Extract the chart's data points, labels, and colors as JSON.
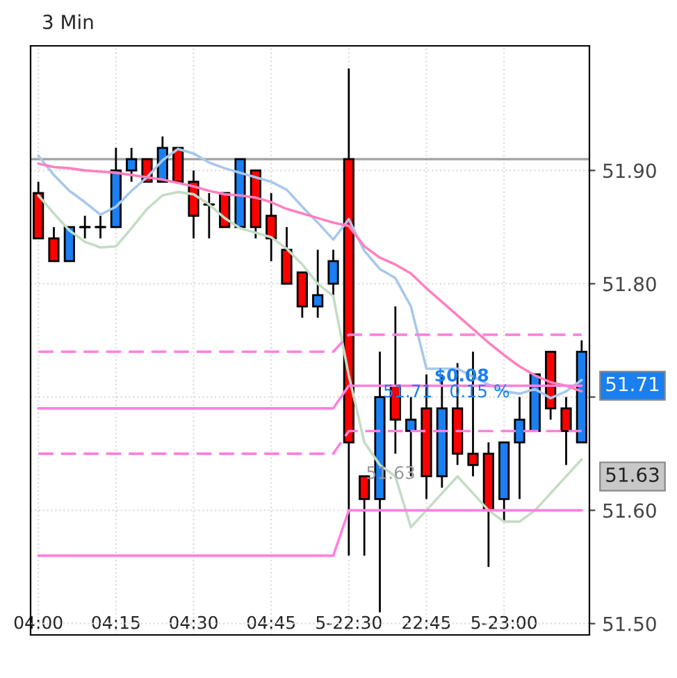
{
  "chart_data": {
    "type": "candlestick",
    "title": "3 Min",
    "categories": [
      "04:00",
      null,
      null,
      null,
      null,
      "04:15",
      null,
      null,
      null,
      null,
      "04:30",
      null,
      null,
      null,
      null,
      "04:45",
      null,
      null,
      null,
      null,
      "5-22:30",
      null,
      null,
      null,
      null,
      "22:45",
      null,
      null,
      null,
      null,
      "5-23:00",
      null,
      null,
      null,
      null,
      null
    ],
    "ohlc": [
      [
        51.88,
        51.89,
        51.84,
        51.84
      ],
      [
        51.84,
        51.85,
        51.82,
        51.82
      ],
      [
        51.82,
        51.85,
        51.82,
        51.85
      ],
      [
        51.85,
        51.86,
        51.84,
        51.85
      ],
      [
        51.85,
        51.86,
        51.84,
        51.85
      ],
      [
        51.85,
        51.92,
        51.85,
        51.9
      ],
      [
        51.9,
        51.92,
        51.89,
        51.91
      ],
      [
        51.91,
        51.91,
        51.89,
        51.89
      ],
      [
        51.89,
        51.93,
        51.89,
        51.92
      ],
      [
        51.92,
        51.92,
        51.89,
        51.89
      ],
      [
        51.89,
        51.9,
        51.84,
        51.86
      ],
      [
        51.87,
        51.88,
        51.84,
        51.87
      ],
      [
        51.88,
        51.88,
        51.85,
        51.85
      ],
      [
        51.85,
        51.91,
        51.85,
        51.91
      ],
      [
        51.9,
        51.9,
        51.84,
        51.85
      ],
      [
        51.86,
        51.88,
        51.82,
        51.84
      ],
      [
        51.83,
        51.85,
        51.8,
        51.8
      ],
      [
        51.81,
        51.81,
        51.77,
        51.78
      ],
      [
        51.78,
        51.83,
        51.77,
        51.79
      ],
      [
        51.8,
        51.83,
        51.79,
        51.82
      ],
      [
        51.91,
        51.99,
        51.56,
        51.66
      ],
      [
        51.63,
        51.63,
        51.56,
        51.61
      ],
      [
        51.61,
        51.74,
        51.51,
        51.7
      ],
      [
        51.71,
        51.78,
        51.65,
        51.68
      ],
      [
        51.67,
        51.7,
        51.63,
        51.68
      ],
      [
        51.69,
        51.72,
        51.61,
        51.63
      ],
      [
        51.63,
        51.72,
        51.62,
        51.69
      ],
      [
        51.69,
        51.73,
        51.64,
        51.65
      ],
      [
        51.65,
        51.74,
        51.63,
        51.64
      ],
      [
        51.65,
        51.66,
        51.55,
        51.6
      ],
      [
        51.61,
        51.66,
        51.59,
        51.66
      ],
      [
        51.66,
        51.7,
        51.61,
        51.68
      ],
      [
        51.67,
        51.72,
        51.67,
        51.72
      ],
      [
        51.74,
        51.74,
        51.68,
        51.69
      ],
      [
        51.69,
        51.7,
        51.64,
        51.67
      ],
      [
        51.66,
        51.75,
        51.66,
        51.74
      ]
    ],
    "series": [
      {
        "type": "line",
        "color": "#a8c8ec",
        "values": [
          51.913,
          51.896,
          51.882,
          51.872,
          51.861,
          51.868,
          51.882,
          51.894,
          51.909,
          51.919,
          51.915,
          51.907,
          51.902,
          51.898,
          51.894,
          51.89,
          51.883,
          51.868,
          51.854,
          51.839,
          51.857,
          51.829,
          51.813,
          51.805,
          51.78,
          51.725,
          51.725,
          51.725,
          51.718,
          51.711,
          51.705,
          51.703,
          51.707,
          51.699,
          51.705,
          51.715
        ]
      },
      {
        "type": "line",
        "color": "#c4dcc4",
        "values": [
          51.878,
          51.862,
          51.847,
          51.837,
          51.832,
          51.833,
          51.849,
          51.866,
          51.878,
          51.881,
          51.879,
          51.87,
          51.858,
          51.849,
          51.845,
          51.841,
          51.831,
          51.817,
          51.8,
          51.789,
          51.719,
          51.66,
          51.64,
          51.63,
          51.585,
          51.6,
          51.615,
          51.63,
          51.615,
          51.6,
          51.59,
          51.59,
          51.6,
          51.615,
          51.63,
          51.645
        ]
      },
      {
        "type": "line",
        "color": "#ff80c0",
        "values": [
          51.906,
          51.903,
          51.902,
          51.9,
          51.899,
          51.898,
          51.896,
          51.894,
          51.892,
          51.889,
          51.886,
          51.882,
          51.879,
          51.878,
          51.876,
          51.872,
          51.866,
          51.862,
          51.858,
          51.854,
          51.851,
          51.833,
          51.823,
          51.817,
          51.809,
          51.796,
          51.784,
          51.772,
          51.76,
          51.748,
          51.737,
          51.727,
          51.719,
          51.713,
          51.71,
          51.705
        ]
      },
      {
        "type": "line",
        "color": "#ff80e0",
        "line_style": "dashed",
        "values": [
          51.74,
          51.74,
          51.74,
          51.74,
          51.74,
          51.74,
          51.74,
          51.74,
          51.74,
          51.74,
          51.74,
          51.74,
          51.74,
          51.74,
          51.74,
          51.74,
          51.74,
          51.74,
          51.74,
          51.74,
          51.755,
          51.755,
          51.755,
          51.755,
          51.755,
          51.755,
          51.755,
          51.755,
          51.755,
          51.755,
          51.755,
          51.755,
          51.755,
          51.755,
          51.755,
          51.755
        ]
      },
      {
        "type": "line",
        "color": "#ff80e0",
        "values": [
          51.69,
          51.69,
          51.69,
          51.69,
          51.69,
          51.69,
          51.69,
          51.69,
          51.69,
          51.69,
          51.69,
          51.69,
          51.69,
          51.69,
          51.69,
          51.69,
          51.69,
          51.69,
          51.69,
          51.69,
          51.71,
          51.71,
          51.71,
          51.71,
          51.71,
          51.71,
          51.71,
          51.71,
          51.71,
          51.71,
          51.71,
          51.71,
          51.71,
          51.71,
          51.71,
          51.71
        ]
      },
      {
        "type": "line",
        "color": "#ff80e0",
        "line_style": "dashed",
        "values": [
          51.65,
          51.65,
          51.65,
          51.65,
          51.65,
          51.65,
          51.65,
          51.65,
          51.65,
          51.65,
          51.65,
          51.65,
          51.65,
          51.65,
          51.65,
          51.65,
          51.65,
          51.65,
          51.65,
          51.65,
          51.67,
          51.67,
          51.67,
          51.67,
          51.67,
          51.67,
          51.67,
          51.67,
          51.67,
          51.67,
          51.67,
          51.67,
          51.67,
          51.67,
          51.67,
          51.67
        ]
      },
      {
        "type": "line",
        "color": "#ff80e0",
        "values": [
          51.56,
          51.56,
          51.56,
          51.56,
          51.56,
          51.56,
          51.56,
          51.56,
          51.56,
          51.56,
          51.56,
          51.56,
          51.56,
          51.56,
          51.56,
          51.56,
          51.56,
          51.56,
          51.56,
          51.56,
          51.6,
          51.6,
          51.6,
          51.6,
          51.6,
          51.6,
          51.6,
          51.6,
          51.6,
          51.6,
          51.6,
          51.6,
          51.6,
          51.6,
          51.6,
          51.6
        ]
      }
    ],
    "ref_lines": [
      {
        "axis": "y",
        "value": 51.91,
        "color": "#a0a0a0"
      }
    ],
    "ylim": [
      51.49,
      52.01
    ],
    "yticks": [
      {
        "value": 51.5,
        "label": "51.50"
      },
      {
        "value": 51.6,
        "label": "51.60"
      },
      {
        "value": 51.7,
        "label": null
      },
      {
        "value": 51.8,
        "label": "51.80"
      },
      {
        "value": 51.9,
        "label": "51.90"
      }
    ],
    "grid": true,
    "annotations": [
      {
        "text": "$0.08",
        "y": 51.718
      },
      {
        "text": "51.71   0.15 %",
        "y": 51.704
      },
      "51.63",
      "51.71",
      "51.63"
    ]
  }
}
